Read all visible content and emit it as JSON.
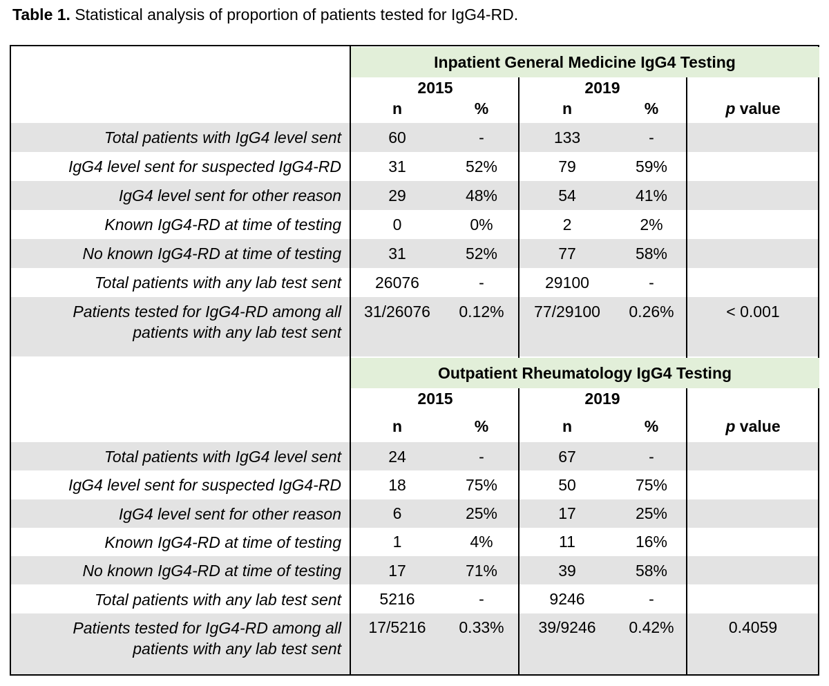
{
  "caption": {
    "label": "Table 1.",
    "text": "Statistical analysis of proportion of patients tested for IgG4-RD."
  },
  "colors": {
    "section_header_bg": "#e2efd9",
    "row_shade": "#e3e3e3"
  },
  "sections": [
    {
      "title": "Inpatient General Medicine IgG4 Testing",
      "years": [
        "2015",
        "2019"
      ],
      "col_headers": [
        "n",
        "%",
        "n",
        "%",
        "p value"
      ],
      "rows": [
        {
          "label": "Total patients with IgG4 level sent",
          "cells": [
            "60",
            "-",
            "133",
            "-",
            ""
          ]
        },
        {
          "label": "IgG4 level sent for suspected IgG4-RD",
          "cells": [
            "31",
            "52%",
            "79",
            "59%",
            ""
          ]
        },
        {
          "label": "IgG4 level sent for other reason",
          "cells": [
            "29",
            "48%",
            "54",
            "41%",
            ""
          ]
        },
        {
          "label": "Known IgG4-RD at time of testing",
          "cells": [
            "0",
            "0%",
            "2",
            "2%",
            ""
          ]
        },
        {
          "label": "No known IgG4-RD at time of testing",
          "cells": [
            "31",
            "52%",
            "77",
            "58%",
            ""
          ]
        },
        {
          "label": "Total patients with any lab test sent",
          "cells": [
            "26076",
            "-",
            "29100",
            "-",
            ""
          ]
        },
        {
          "label": "Patients tested for IgG4-RD among all",
          "label2": "patients with any lab test sent",
          "cells": [
            "31/26076",
            "0.12%",
            "77/29100",
            "0.26%",
            "< 0.001"
          ]
        }
      ]
    },
    {
      "title": "Outpatient Rheumatology IgG4 Testing",
      "years": [
        "2015",
        "2019"
      ],
      "col_headers": [
        "n",
        "%",
        "n",
        "%",
        "p value"
      ],
      "rows": [
        {
          "label": "Total patients with IgG4 level sent",
          "cells": [
            "24",
            "-",
            "67",
            "-",
            ""
          ]
        },
        {
          "label": "IgG4 level sent for suspected IgG4-RD",
          "cells": [
            "18",
            "75%",
            "50",
            "75%",
            ""
          ]
        },
        {
          "label": "IgG4 level sent for other reason",
          "cells": [
            "6",
            "25%",
            "17",
            "25%",
            ""
          ]
        },
        {
          "label": "Known IgG4-RD at time of testing",
          "cells": [
            "1",
            "4%",
            "11",
            "16%",
            ""
          ]
        },
        {
          "label": "No known IgG4-RD at time of testing",
          "cells": [
            "17",
            "71%",
            "39",
            "58%",
            ""
          ]
        },
        {
          "label": "Total patients with any lab test sent",
          "cells": [
            "5216",
            "-",
            "9246",
            "-",
            ""
          ]
        },
        {
          "label": "Patients tested for IgG4-RD among all",
          "label2": "patients with any lab test sent",
          "cells": [
            "17/5216",
            "0.33%",
            "39/9246",
            "0.42%",
            "0.4059"
          ]
        }
      ]
    }
  ]
}
